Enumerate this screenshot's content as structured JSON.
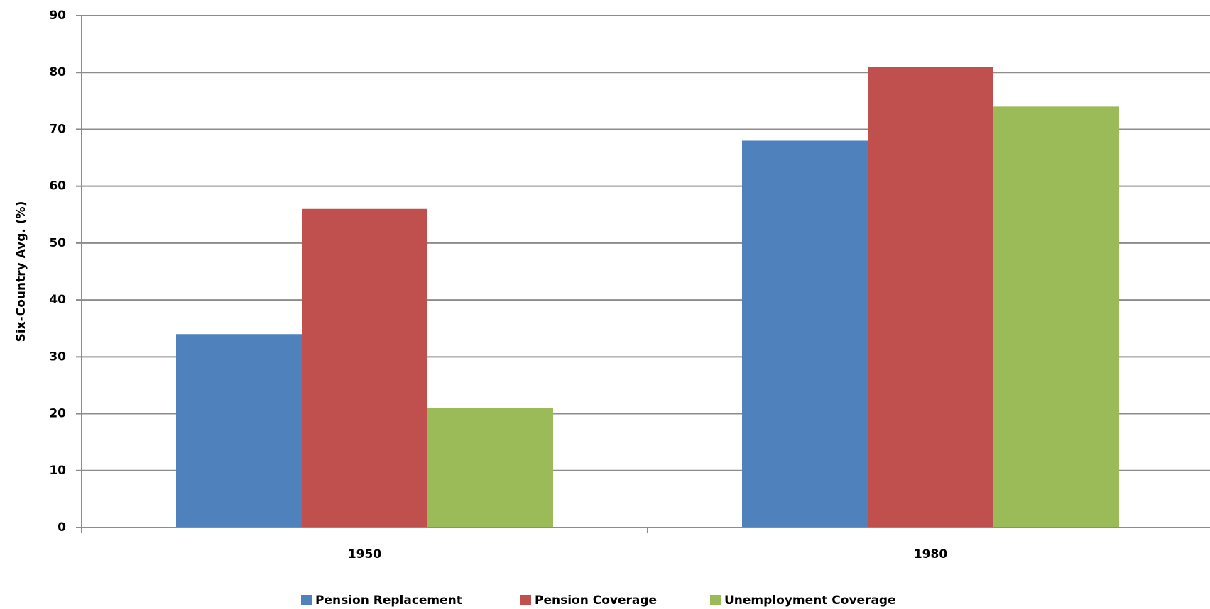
{
  "chart_data": {
    "type": "bar",
    "y_label": "Six-Country Avg. (%)",
    "categories": [
      "1950",
      "1980"
    ],
    "series": [
      {
        "name": "Pension Replacement",
        "color": "#4f81bd",
        "values": [
          34,
          68
        ]
      },
      {
        "name": "Pension Coverage",
        "color": "#c0504d",
        "values": [
          56,
          81
        ]
      },
      {
        "name": "Unemployment Coverage",
        "color": "#9bbb59",
        "values": [
          21,
          74
        ]
      }
    ],
    "ylim": [
      0,
      90
    ],
    "yticks": [
      0,
      10,
      20,
      30,
      40,
      50,
      60,
      70,
      80,
      90
    ],
    "grid": true,
    "legend": "bottom"
  }
}
